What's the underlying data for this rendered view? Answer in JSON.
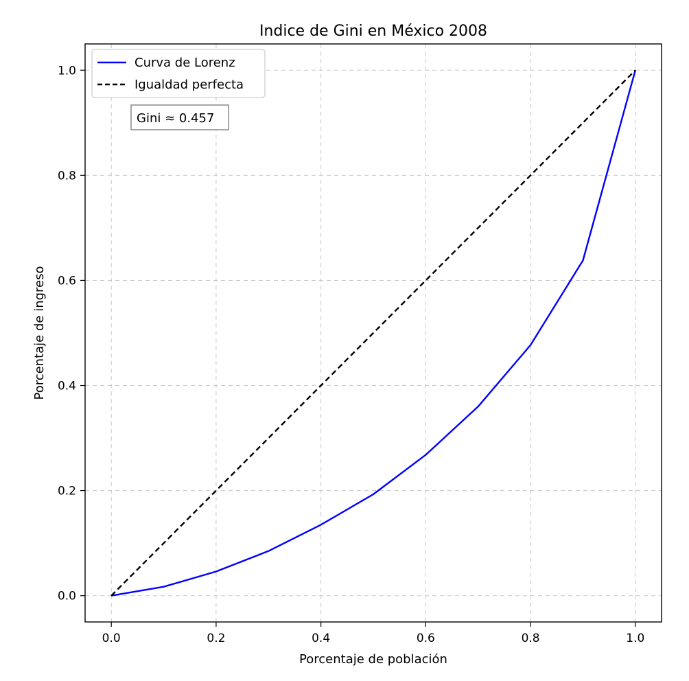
{
  "chart_data": {
    "type": "line",
    "title": "Indice de Gini en México 2008",
    "xlabel": "Porcentaje de población",
    "ylabel": "Porcentaje de ingreso",
    "xlim": [
      -0.05,
      1.05
    ],
    "ylim": [
      -0.05,
      1.05
    ],
    "x_ticks": [
      0.0,
      0.2,
      0.4,
      0.6,
      0.8,
      1.0
    ],
    "x_tick_labels": [
      "0.0",
      "0.2",
      "0.4",
      "0.6",
      "0.8",
      "1.0"
    ],
    "y_ticks": [
      0.0,
      0.2,
      0.4,
      0.6,
      0.8,
      1.0
    ],
    "y_tick_labels": [
      "0.0",
      "0.2",
      "0.4",
      "0.6",
      "0.8",
      "1.0"
    ],
    "grid": true,
    "legend": "top-left",
    "series": [
      {
        "name": "Curva de Lorenz",
        "color": "#0000ff",
        "style": "solid",
        "x": [
          0.0,
          0.1,
          0.2,
          0.3,
          0.4,
          0.5,
          0.6,
          0.7,
          0.8,
          0.9,
          1.0
        ],
        "y": [
          0.0,
          0.017,
          0.046,
          0.085,
          0.135,
          0.193,
          0.268,
          0.36,
          0.477,
          0.638,
          1.0
        ]
      },
      {
        "name": "Igualdad perfecta",
        "color": "#000000",
        "style": "dashed",
        "x": [
          0.0,
          1.0
        ],
        "y": [
          0.0,
          1.0
        ]
      }
    ],
    "annotation": {
      "text": "Gini ≈ 0.457",
      "x": 0.05,
      "y": 0.9
    }
  }
}
